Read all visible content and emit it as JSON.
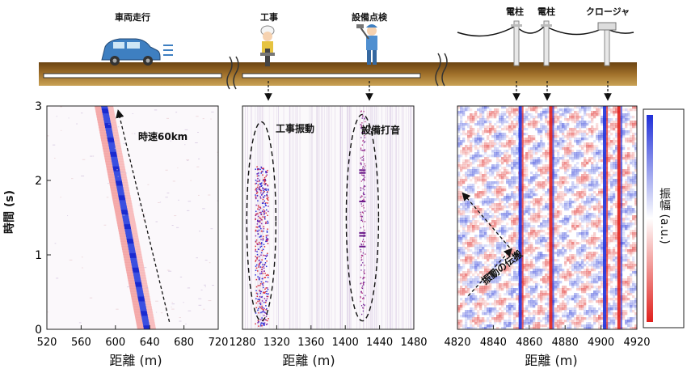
{
  "scene": {
    "vehicle_label": "車両走行",
    "construction_label": "工事",
    "inspection_label": "設備点検",
    "pole1_label": "電柱",
    "pole2_label": "電柱",
    "closure_label": "クロージャ"
  },
  "colors": {
    "ground": "#8B5A1C",
    "ground_light": "#C9A255",
    "car": "#3E7FC1",
    "positive": "#1F2FD8",
    "negative": "#E0201C"
  },
  "chart_data": [
    {
      "type": "heatmap",
      "panel": "vehicle",
      "xlabel": "距離 (m)",
      "ylabel": "時間 (s)",
      "xlim": [
        520,
        720
      ],
      "ylim": [
        0,
        3
      ],
      "xticks": [
        520,
        560,
        600,
        640,
        680,
        720
      ],
      "yticks": [
        0,
        1,
        2,
        3
      ],
      "signal_track": {
        "x": [
          637,
          587
        ],
        "t": [
          0,
          3
        ]
      },
      "arrow": {
        "from": [
          663,
          0.1
        ],
        "to": [
          604,
          2.9
        ]
      },
      "annotations": [
        "時速60km"
      ]
    },
    {
      "type": "heatmap",
      "panel": "construction",
      "xlabel": "距離 (m)",
      "xlim": [
        1280,
        1480
      ],
      "xticks": [
        1280,
        1320,
        1360,
        1400,
        1440,
        1480
      ],
      "regions": [
        {
          "label": "工事振動",
          "x_center": 1302,
          "t_range": [
            0.2,
            2.7
          ]
        },
        {
          "label": "設備打音",
          "x_center": 1420,
          "t_range": [
            0.2,
            2.8
          ]
        }
      ]
    },
    {
      "type": "heatmap",
      "panel": "poles",
      "xlabel": "距離 (m)",
      "xlim": [
        4820,
        4920
      ],
      "xticks": [
        4820,
        4840,
        4860,
        4880,
        4900,
        4920
      ],
      "pole_positions": [
        4855,
        4872,
        4902,
        4910
      ],
      "annotations": [
        "振動の伝搬"
      ]
    }
  ],
  "colorbar": {
    "label": "振幅 (a.u.)"
  }
}
